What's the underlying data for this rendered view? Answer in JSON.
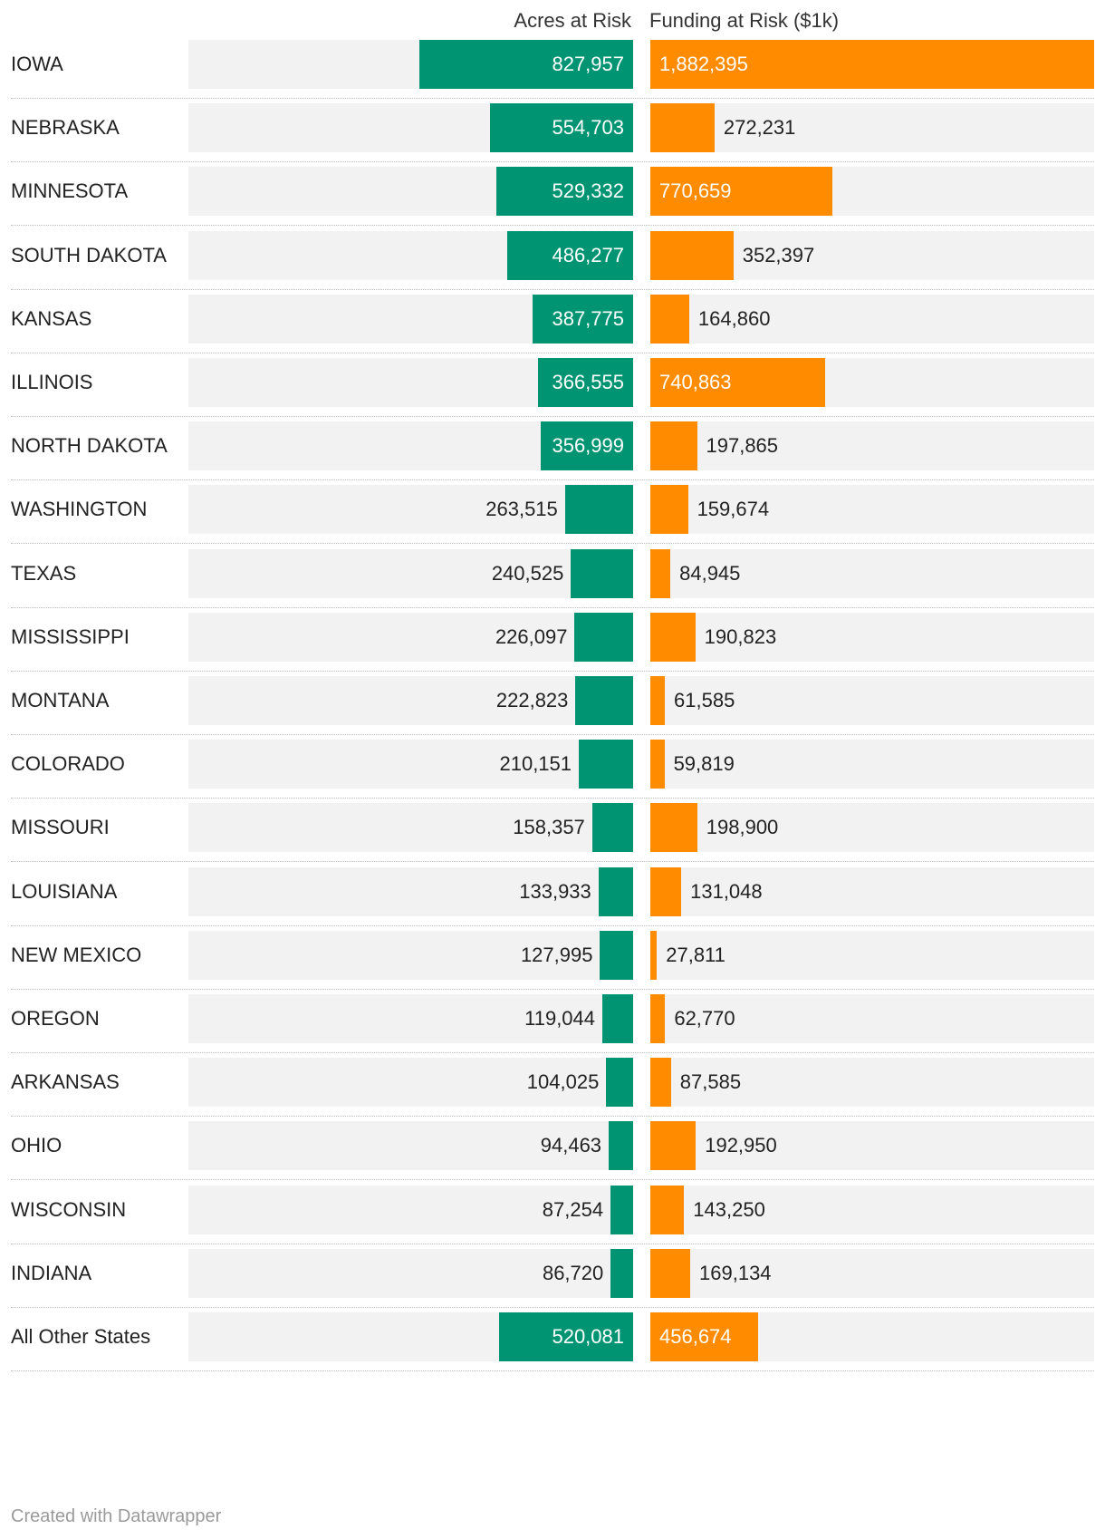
{
  "header": {
    "acres_label": "Acres at Risk",
    "funding_label": "Funding at Risk ($1k)"
  },
  "colors": {
    "acres": "#009473",
    "funding": "#ff8c00",
    "background": "#f2f2f2"
  },
  "footer": "Created with Datawrapper",
  "chart_data": {
    "type": "bar",
    "orientation": "horizontal",
    "categories": [
      "IOWA",
      "NEBRASKA",
      "MINNESOTA",
      "SOUTH DAKOTA",
      "KANSAS",
      "ILLINOIS",
      "NORTH DAKOTA",
      "WASHINGTON",
      "TEXAS",
      "MISSISSIPPI",
      "MONTANA",
      "COLORADO",
      "MISSOURI",
      "LOUISIANA",
      "NEW MEXICO",
      "OREGON",
      "ARKANSAS",
      "OHIO",
      "WISCONSIN",
      "INDIANA",
      "All Other States"
    ],
    "series": [
      {
        "name": "Acres at Risk",
        "values": [
          827957,
          554703,
          529332,
          486277,
          387775,
          366555,
          356999,
          263515,
          240525,
          226097,
          222823,
          210151,
          158357,
          133933,
          127995,
          119044,
          104025,
          94463,
          87254,
          86720,
          520081
        ]
      },
      {
        "name": "Funding at Risk ($1k)",
        "values": [
          1882395,
          272231,
          770659,
          352397,
          164860,
          740863,
          197865,
          159674,
          84945,
          190823,
          61585,
          59819,
          198900,
          131048,
          27811,
          62770,
          87585,
          192950,
          143250,
          169134,
          456674
        ]
      }
    ],
    "xlim_acres": [
      0,
      1720000
    ],
    "xlim_funding": [
      0,
      1882395
    ]
  }
}
